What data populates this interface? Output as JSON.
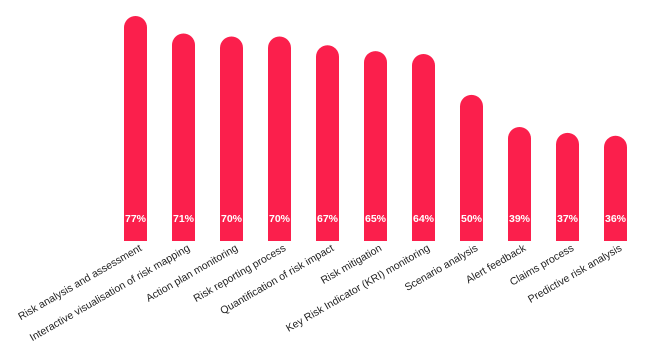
{
  "chart_data": {
    "type": "bar",
    "categories": [
      "Risk analysis and assessment",
      "Interactive visualisation of risk mapping",
      "Action plan monitoring",
      "Risk reporting process",
      "Quantification of risk impact",
      "Risk mitigation",
      "Key Risk Indicator (KRI) monitoring",
      "Scenario analysis",
      "Alert feedback",
      "Claims process",
      "Predictive risk analysis"
    ],
    "values": [
      77,
      71,
      70,
      70,
      67,
      65,
      64,
      50,
      39,
      37,
      36
    ],
    "value_labels": [
      "77%",
      "71%",
      "70%",
      "70%",
      "67%",
      "65%",
      "64%",
      "50%",
      "39%",
      "37%",
      "36%"
    ],
    "title": "",
    "xlabel": "",
    "ylabel": "",
    "ylim": [
      0,
      77
    ],
    "grid": false,
    "legend": "none",
    "colors": {
      "bar": "#fb1f4c",
      "value_text": "#ffffff",
      "category_text": "#1f1f1f",
      "background": "#ffffff"
    }
  }
}
